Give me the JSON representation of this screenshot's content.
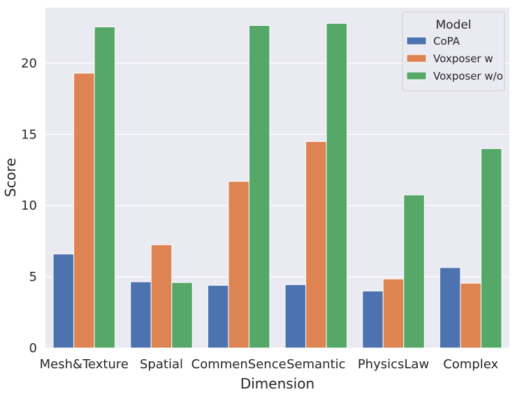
{
  "chart_data": {
    "type": "bar",
    "xlabel": "Dimension",
    "ylabel": "Score",
    "categories": [
      "Mesh&Texture",
      "Spatial",
      "CommenSence",
      "Semantic",
      "PhysicsLaw",
      "Complex"
    ],
    "series": [
      {
        "name": "CoPA",
        "color": "#4c72b0",
        "values": [
          6.6,
          4.65,
          4.4,
          4.45,
          4.0,
          5.65
        ]
      },
      {
        "name": "Voxposer w",
        "color": "#dd8452",
        "values": [
          19.3,
          7.25,
          11.7,
          14.5,
          4.85,
          4.55
        ]
      },
      {
        "name": "Voxposer w/o",
        "color": "#55a868",
        "values": [
          22.55,
          4.6,
          22.65,
          22.8,
          10.75,
          14.0
        ]
      }
    ],
    "ylim": [
      0,
      23.9
    ],
    "yticks": [
      0,
      5,
      10,
      15,
      20
    ],
    "grid": true,
    "legend": {
      "title": "Model",
      "position": "top-right"
    },
    "background": "#eaeaf2"
  }
}
